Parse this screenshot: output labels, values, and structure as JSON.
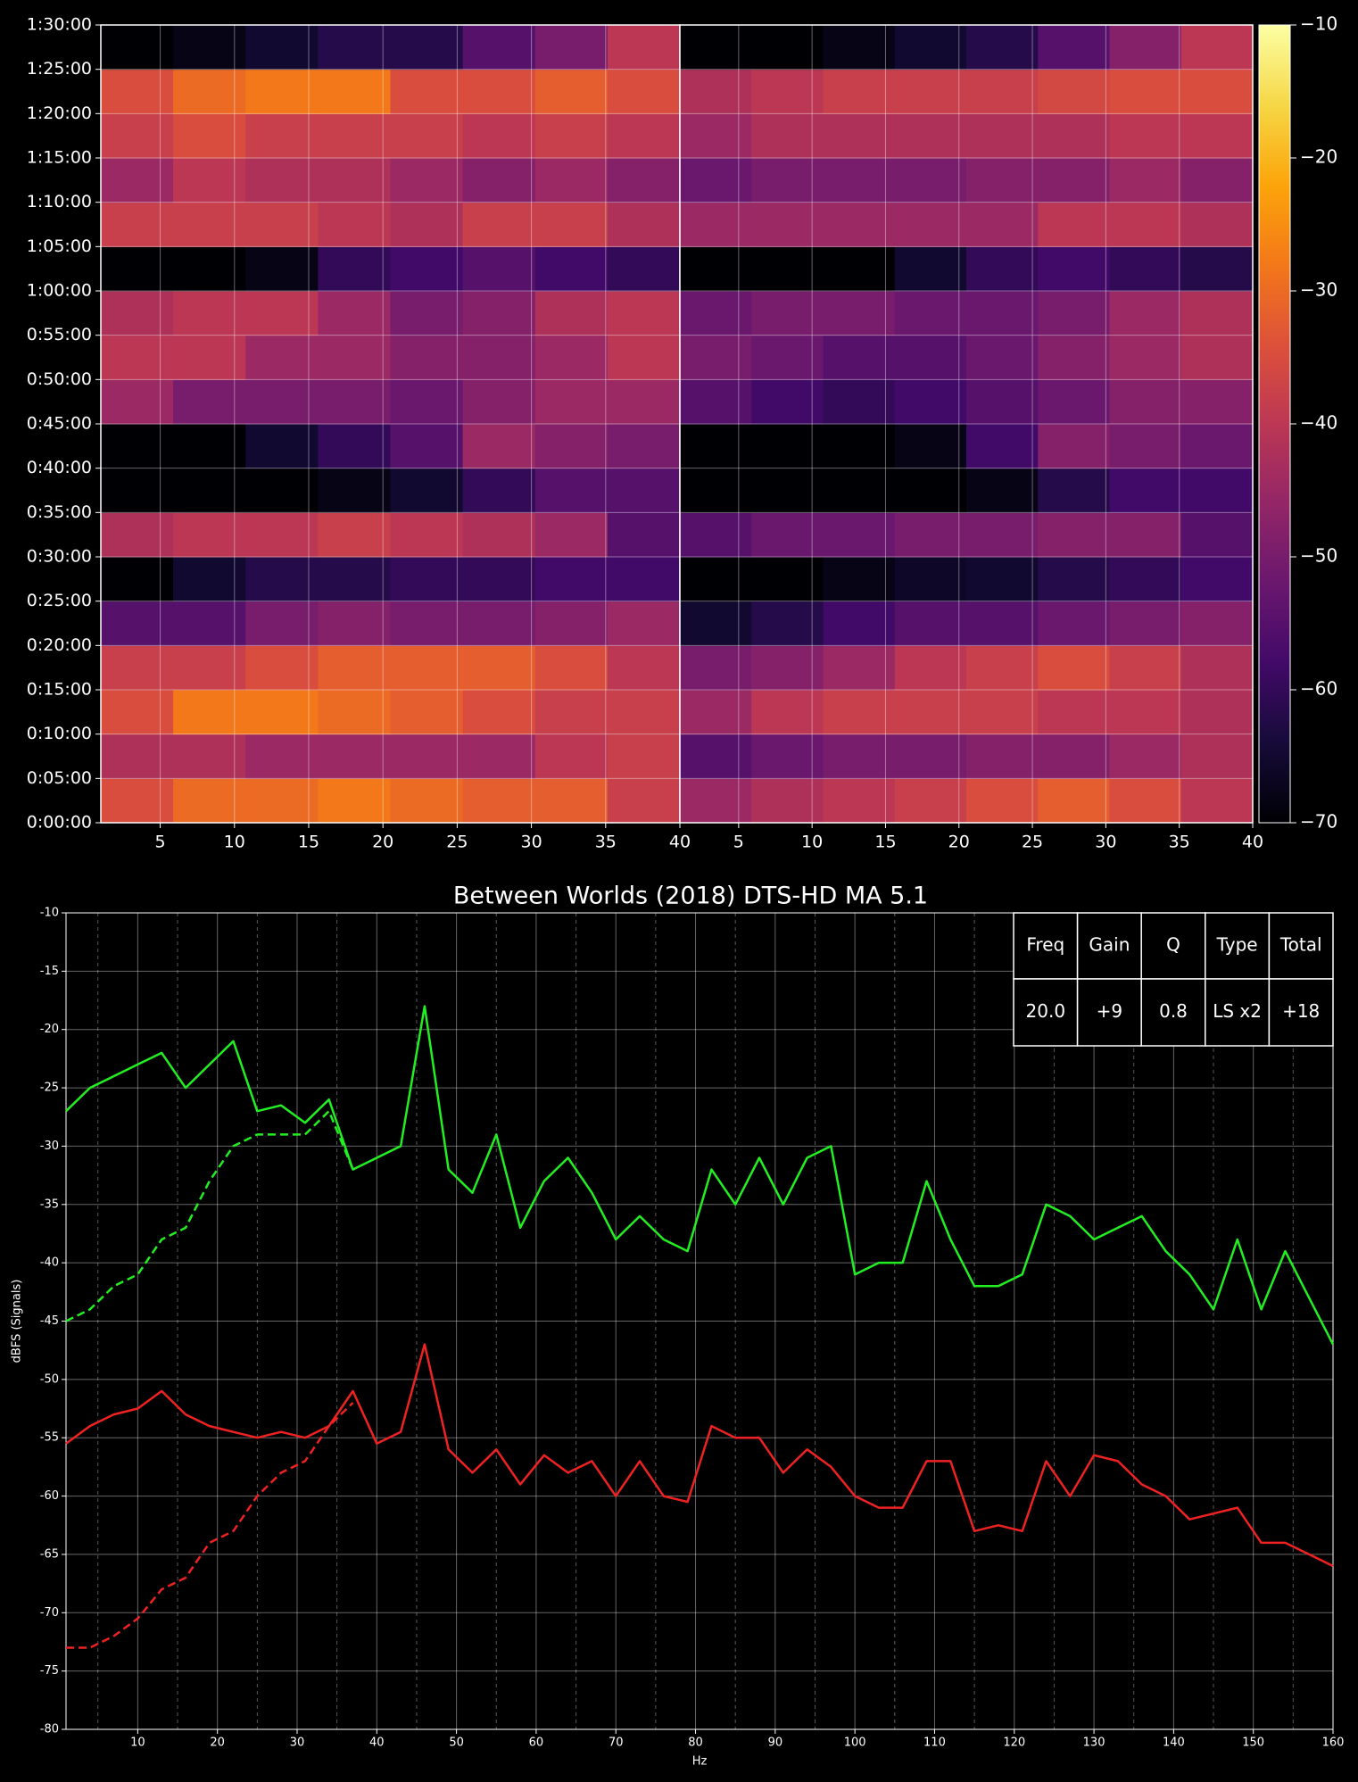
{
  "chart_data": [
    {
      "type": "heatmap",
      "colormap": "inferno",
      "xlim": [
        1,
        40
      ],
      "xticks": [
        5,
        10,
        15,
        20,
        25,
        30,
        35,
        40
      ],
      "ylim": [
        0,
        5400
      ],
      "yticks": [
        {
          "value": 0,
          "label": "0:00:00"
        },
        {
          "value": 300,
          "label": "0:05:00"
        },
        {
          "value": 600,
          "label": "0:10:00"
        },
        {
          "value": 900,
          "label": "0:15:00"
        },
        {
          "value": 1200,
          "label": "0:20:00"
        },
        {
          "value": 1500,
          "label": "0:25:00"
        },
        {
          "value": 1800,
          "label": "0:30:00"
        },
        {
          "value": 2100,
          "label": "0:35:00"
        },
        {
          "value": 2400,
          "label": "0:40:00"
        },
        {
          "value": 2700,
          "label": "0:45:00"
        },
        {
          "value": 3000,
          "label": "0:50:00"
        },
        {
          "value": 3300,
          "label": "0:55:00"
        },
        {
          "value": 3600,
          "label": "1:00:00"
        },
        {
          "value": 3900,
          "label": "1:05:00"
        },
        {
          "value": 4200,
          "label": "1:10:00"
        },
        {
          "value": 4500,
          "label": "1:15:00"
        },
        {
          "value": 4800,
          "label": "1:20:00"
        },
        {
          "value": 5100,
          "label": "1:25:00"
        },
        {
          "value": 5400,
          "label": "1:30:00"
        }
      ],
      "grid": true,
      "clim": [
        -70,
        -10
      ],
      "cticks": [
        {
          "value": -70,
          "label": "−70"
        },
        {
          "value": -60,
          "label": "−60"
        },
        {
          "value": -50,
          "label": "−50"
        },
        {
          "value": -40,
          "label": "−40"
        },
        {
          "value": -30,
          "label": "−30"
        },
        {
          "value": -20,
          "label": "−20"
        },
        {
          "value": -10,
          "label": "−10"
        }
      ],
      "panels": [
        {
          "values": [
            [
              -35,
              -30,
              -30,
              -28,
              -30,
              -32,
              -32,
              -38
            ],
            [
              -42,
              -42,
              -45,
              -45,
              -45,
              -45,
              -40,
              -38
            ],
            [
              -35,
              -28,
              -28,
              -30,
              -32,
              -35,
              -38,
              -38
            ],
            [
              -38,
              -38,
              -35,
              -32,
              -32,
              -32,
              -35,
              -40
            ],
            [
              -55,
              -55,
              -50,
              -48,
              -50,
              -50,
              -48,
              -45
            ],
            [
              -70,
              -65,
              -62,
              -62,
              -60,
              -60,
              -58,
              -58
            ],
            [
              -42,
              -40,
              -40,
              -38,
              -40,
              -42,
              -45,
              -55
            ],
            [
              -70,
              -70,
              -70,
              -68,
              -65,
              -60,
              -55,
              -55
            ],
            [
              -70,
              -70,
              -65,
              -60,
              -55,
              -45,
              -48,
              -50
            ],
            [
              -45,
              -50,
              -50,
              -50,
              -52,
              -48,
              -45,
              -45
            ],
            [
              -40,
              -40,
              -45,
              -45,
              -48,
              -48,
              -45,
              -40
            ],
            [
              -42,
              -40,
              -40,
              -45,
              -50,
              -48,
              -42,
              -40
            ],
            [
              -70,
              -70,
              -68,
              -60,
              -58,
              -55,
              -58,
              -60
            ],
            [
              -38,
              -38,
              -38,
              -40,
              -42,
              -38,
              -38,
              -42
            ],
            [
              -45,
              -40,
              -42,
              -42,
              -45,
              -48,
              -45,
              -48
            ],
            [
              -38,
              -35,
              -38,
              -38,
              -38,
              -40,
              -38,
              -40
            ],
            [
              -35,
              -30,
              -28,
              -28,
              -35,
              -35,
              -32,
              -35
            ],
            [
              -70,
              -68,
              -65,
              -62,
              -62,
              -55,
              -50,
              -40
            ]
          ]
        },
        {
          "values": [
            [
              -45,
              -42,
              -40,
              -38,
              -35,
              -32,
              -35,
              -40
            ],
            [
              -55,
              -52,
              -50,
              -50,
              -48,
              -48,
              -45,
              -42
            ],
            [
              -45,
              -40,
              -38,
              -38,
              -38,
              -40,
              -40,
              -42
            ],
            [
              -50,
              -48,
              -45,
              -40,
              -38,
              -35,
              -38,
              -42
            ],
            [
              -65,
              -62,
              -58,
              -55,
              -55,
              -52,
              -50,
              -48
            ],
            [
              -70,
              -70,
              -68,
              -66,
              -65,
              -62,
              -60,
              -58
            ],
            [
              -55,
              -52,
              -52,
              -50,
              -50,
              -48,
              -48,
              -55
            ],
            [
              -70,
              -70,
              -70,
              -70,
              -68,
              -62,
              -58,
              -58
            ],
            [
              -70,
              -70,
              -70,
              -68,
              -58,
              -48,
              -50,
              -52
            ],
            [
              -55,
              -58,
              -60,
              -58,
              -55,
              -52,
              -48,
              -48
            ],
            [
              -50,
              -52,
              -55,
              -55,
              -52,
              -48,
              -45,
              -42
            ],
            [
              -52,
              -50,
              -50,
              -52,
              -52,
              -50,
              -45,
              -42
            ],
            [
              -70,
              -70,
              -70,
              -65,
              -60,
              -58,
              -60,
              -62
            ],
            [
              -45,
              -45,
              -45,
              -45,
              -45,
              -40,
              -40,
              -42
            ],
            [
              -52,
              -50,
              -50,
              -50,
              -48,
              -48,
              -45,
              -48
            ],
            [
              -45,
              -42,
              -42,
              -42,
              -42,
              -42,
              -40,
              -40
            ],
            [
              -42,
              -40,
              -38,
              -38,
              -38,
              -36,
              -35,
              -35
            ],
            [
              -70,
              -70,
              -68,
              -65,
              -62,
              -55,
              -48,
              -40
            ]
          ]
        }
      ]
    },
    {
      "type": "line",
      "title": "Between Worlds (2018) DTS-HD MA 5.1",
      "xlabel": "Hz",
      "ylabel": "dBFS (Signals)",
      "xlim": [
        1,
        160
      ],
      "xticks": [
        10,
        20,
        30,
        40,
        50,
        60,
        70,
        80,
        90,
        100,
        110,
        120,
        130,
        140,
        150,
        160
      ],
      "xminor": [
        5,
        15,
        25,
        35,
        45,
        55,
        65,
        75,
        85,
        95,
        105,
        115,
        125,
        135,
        145,
        155
      ],
      "ylim": [
        -80,
        -10
      ],
      "yticks": [
        -80,
        -75,
        -70,
        -65,
        -60,
        -55,
        -50,
        -45,
        -40,
        -35,
        -30,
        -25,
        -20,
        -15,
        -10
      ],
      "grid": true,
      "x": [
        1,
        4,
        7,
        10,
        13,
        16,
        19,
        22,
        25,
        28,
        31,
        34,
        37,
        40,
        43,
        46,
        49,
        52,
        55,
        58,
        61,
        64,
        67,
        70,
        73,
        76,
        79,
        82,
        85,
        88,
        91,
        94,
        97,
        100,
        103,
        106,
        109,
        112,
        115,
        118,
        121,
        124,
        127,
        130,
        133,
        136,
        139,
        142,
        145,
        148,
        151,
        154,
        157,
        160
      ],
      "series": [
        {
          "color": "#22ee22",
          "dashed": false,
          "values": [
            -27,
            -25,
            -24,
            -23,
            -22,
            -25,
            -23,
            -21,
            -27,
            -26.5,
            -28,
            -26,
            -32,
            -31,
            -30,
            -18,
            -32,
            -34,
            -29,
            -37,
            -33,
            -31,
            -34,
            -38,
            -36,
            -38,
            -39,
            -32,
            -35,
            -31,
            -35,
            -31,
            -30,
            -41,
            -40,
            -40,
            -33,
            -38,
            -42,
            -42,
            -41,
            -35,
            -36,
            -38,
            -37,
            -36,
            -39,
            -41,
            -44,
            -38,
            -44,
            -39,
            -43,
            -47
          ]
        },
        {
          "color": "#22ee22",
          "dashed": true,
          "values": [
            -45,
            -44,
            -42,
            -41,
            -38,
            -37,
            -33,
            -30,
            -29,
            -29,
            -29,
            -27,
            -32,
            null,
            null,
            null,
            null,
            null,
            null,
            null,
            null,
            null,
            null,
            null,
            null,
            null,
            null,
            null,
            null,
            null,
            null,
            null,
            null,
            null,
            null,
            null,
            null,
            null,
            null,
            null,
            null,
            null,
            null,
            null,
            null,
            null,
            null,
            null,
            null,
            null,
            null,
            null,
            null,
            null
          ]
        },
        {
          "color": "#ee2222",
          "dashed": false,
          "values": [
            -55.5,
            -54,
            -53,
            -52.5,
            -51,
            -53,
            -54,
            -54.5,
            -55,
            -54.5,
            -55,
            -54,
            -51,
            -55.5,
            -54.5,
            -47,
            -56,
            -58,
            -56,
            -59,
            -56.5,
            -58,
            -57,
            -60,
            -57,
            -60,
            -60.5,
            -54,
            -55,
            -55,
            -58,
            -56,
            -57.5,
            -60,
            -61,
            -61,
            -57,
            -57,
            -63,
            -62.5,
            -63,
            -57,
            -60,
            -56.5,
            -57,
            -59,
            -60,
            -62,
            -61.5,
            -61,
            -64,
            -64,
            -65,
            -66
          ]
        },
        {
          "color": "#ee2222",
          "dashed": true,
          "values": [
            -73,
            -73,
            -72,
            -70.5,
            -68,
            -67,
            -64,
            -63,
            -60,
            -58,
            -57,
            -54,
            -52,
            null,
            null,
            null,
            null,
            null,
            null,
            null,
            null,
            null,
            null,
            null,
            null,
            null,
            null,
            null,
            null,
            null,
            null,
            null,
            null,
            null,
            null,
            null,
            null,
            null,
            null,
            null,
            null,
            null,
            null,
            null,
            null,
            null,
            null,
            null,
            null,
            null,
            null,
            null,
            null,
            null
          ]
        }
      ],
      "table": {
        "header": [
          "Freq",
          "Gain",
          "Q",
          "Type",
          "Total"
        ],
        "rows": [
          [
            "20.0",
            "+9",
            "0.8",
            "LS x2",
            "+18"
          ]
        ]
      }
    }
  ]
}
